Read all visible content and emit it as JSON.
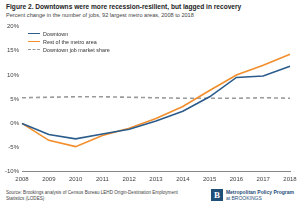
{
  "chart_data": {
    "type": "line",
    "title": "Figure 2. Downtowns were more recession-resilient, but lagged in recovery",
    "subtitle": "Percent change in the number of jobs, 92 largest metro areas, 2008 to 2018",
    "categories": [
      "2008",
      "2009",
      "2010",
      "2011",
      "2012",
      "2013",
      "2014",
      "2015",
      "2016",
      "2017",
      "2018"
    ],
    "series": [
      {
        "name": "Downtown",
        "color": "#2b5c8c",
        "line_style": "solid",
        "values": [
          0,
          -2.3,
          -3.2,
          -2.2,
          -1.2,
          0.5,
          2.5,
          5.5,
          9.5,
          9.8,
          11.8
        ]
      },
      {
        "name": "Rest of the metro area",
        "color": "#f28e2b",
        "line_style": "solid",
        "values": [
          0,
          -3.5,
          -4.8,
          -2.5,
          -1.0,
          1.0,
          3.5,
          6.8,
          10.0,
          12.0,
          14.3
        ]
      },
      {
        "name": "Downtown job market share",
        "color": "#9a9a9a",
        "line_style": "dashed",
        "values": [
          5.3,
          5.4,
          5.5,
          5.5,
          5.4,
          5.3,
          5.2,
          5.2,
          5.2,
          5.3,
          5.2
        ]
      }
    ],
    "ylim": [
      -10,
      20
    ],
    "yticks": [
      {
        "value": -10,
        "label": "-10%"
      },
      {
        "value": -5,
        "label": "-5%"
      },
      {
        "value": 0,
        "label": "0%"
      },
      {
        "value": 5,
        "label": "5%"
      },
      {
        "value": 10,
        "label": "10%"
      },
      {
        "value": 15,
        "label": "15%"
      },
      {
        "value": 20,
        "label": "20%"
      }
    ],
    "grid": false,
    "legend": "upper left",
    "source": "Source: Brookings analysis of Census Bureau LEHD Origin-Destination Employment Statistics (LODES)",
    "annotations": [
      "B",
      "Metropolitan Policy Program",
      "at BROOKINGS"
    ]
  }
}
